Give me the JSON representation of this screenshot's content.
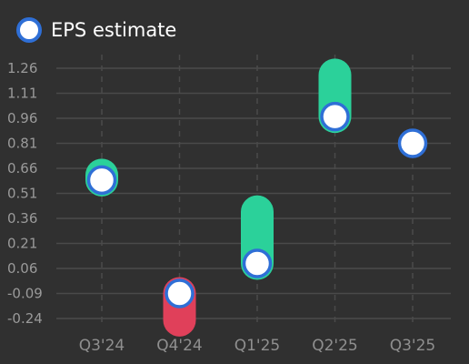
{
  "chart_data": {
    "type": "scatter",
    "legend": {
      "label": "EPS estimate",
      "position": "top-left"
    },
    "categories": [
      "Q3'24",
      "Q4'24",
      "Q1'25",
      "Q2'25",
      "Q3'25"
    ],
    "yticks": [
      "1.26",
      "1.11",
      "0.96",
      "0.81",
      "0.66",
      "0.51",
      "0.36",
      "0.21",
      "0.06",
      "-0.09",
      "-0.24"
    ],
    "ylim": [
      -0.24,
      1.26
    ],
    "grid": true,
    "series": [
      {
        "name": "EPS estimate",
        "values": [
          0.59,
          -0.09,
          0.09,
          0.97,
          0.81
        ]
      },
      {
        "values": [
          0.62,
          -0.25,
          0.4,
          1.22,
          null
        ]
      }
    ],
    "colors": {
      "background": "#303030",
      "grid": "#4a4a4a",
      "beat": "#2bd19a",
      "miss": "#e0405a",
      "marker_fill": "#ffffff",
      "marker_stroke": "#2f6fd6"
    }
  }
}
